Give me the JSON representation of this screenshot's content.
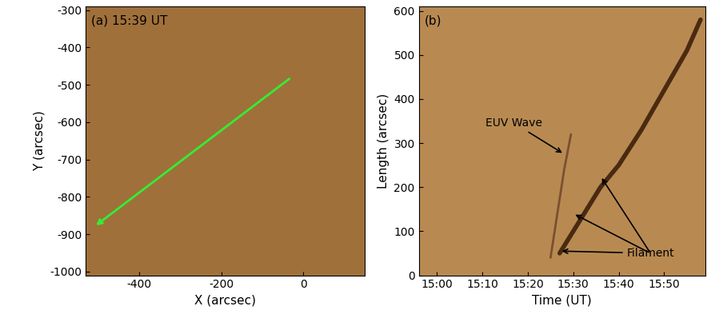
{
  "chart_data": [
    {
      "type": "image",
      "panel_label": "(a) 15:39 UT",
      "xlabel": "X (arcsec)",
      "ylabel": "Y (arcsec)",
      "xlim": [
        -530,
        150
      ],
      "ylim": [
        -1010,
        -290
      ],
      "xticks": [
        -400,
        -200,
        0
      ],
      "yticks": [
        -1000,
        -900,
        -800,
        -700,
        -600,
        -500,
        -400,
        -300
      ],
      "color": "#a0703a",
      "slit": {
        "x": [
          -30,
          -510
        ],
        "y": [
          -480,
          -880
        ],
        "color": "#33ee33"
      }
    },
    {
      "type": "line",
      "panel_label": "(b)",
      "xlabel": "Time (UT)",
      "ylabel": "Length (arcsec)",
      "xlim": [
        -4,
        59
      ],
      "ylim": [
        0,
        610
      ],
      "xticks": [
        {
          "value": 0,
          "label": "15:00"
        },
        {
          "value": 10,
          "label": "15:10"
        },
        {
          "value": 20,
          "label": "15:20"
        },
        {
          "value": 30,
          "label": "15:30"
        },
        {
          "value": 40,
          "label": "15:40"
        },
        {
          "value": 50,
          "label": "15:50"
        }
      ],
      "yticks": [
        0,
        100,
        200,
        300,
        400,
        500,
        600
      ],
      "color": "#b88a52",
      "series": [
        {
          "name": "EUV Wave",
          "color": "#7a5030",
          "x": [
            25,
            26.5,
            28,
            29.5
          ],
          "values": [
            40,
            140,
            240,
            320
          ]
        },
        {
          "name": "Filament",
          "color": "#4a2a10",
          "x": [
            27,
            30,
            33,
            36,
            40,
            45,
            50,
            55,
            58
          ],
          "values": [
            50,
            100,
            150,
            200,
            250,
            330,
            420,
            510,
            580
          ]
        }
      ],
      "annotations": [
        {
          "text": "EUV Wave",
          "xy": [
            [
              28,
              275
            ]
          ],
          "xytext": [
            17,
            345
          ]
        },
        {
          "text": "Filament",
          "xy": [
            [
              27,
              55
            ],
            [
              30,
              140
            ],
            [
              36,
              225
            ]
          ],
          "xytext": [
            47,
            50
          ]
        }
      ]
    }
  ]
}
